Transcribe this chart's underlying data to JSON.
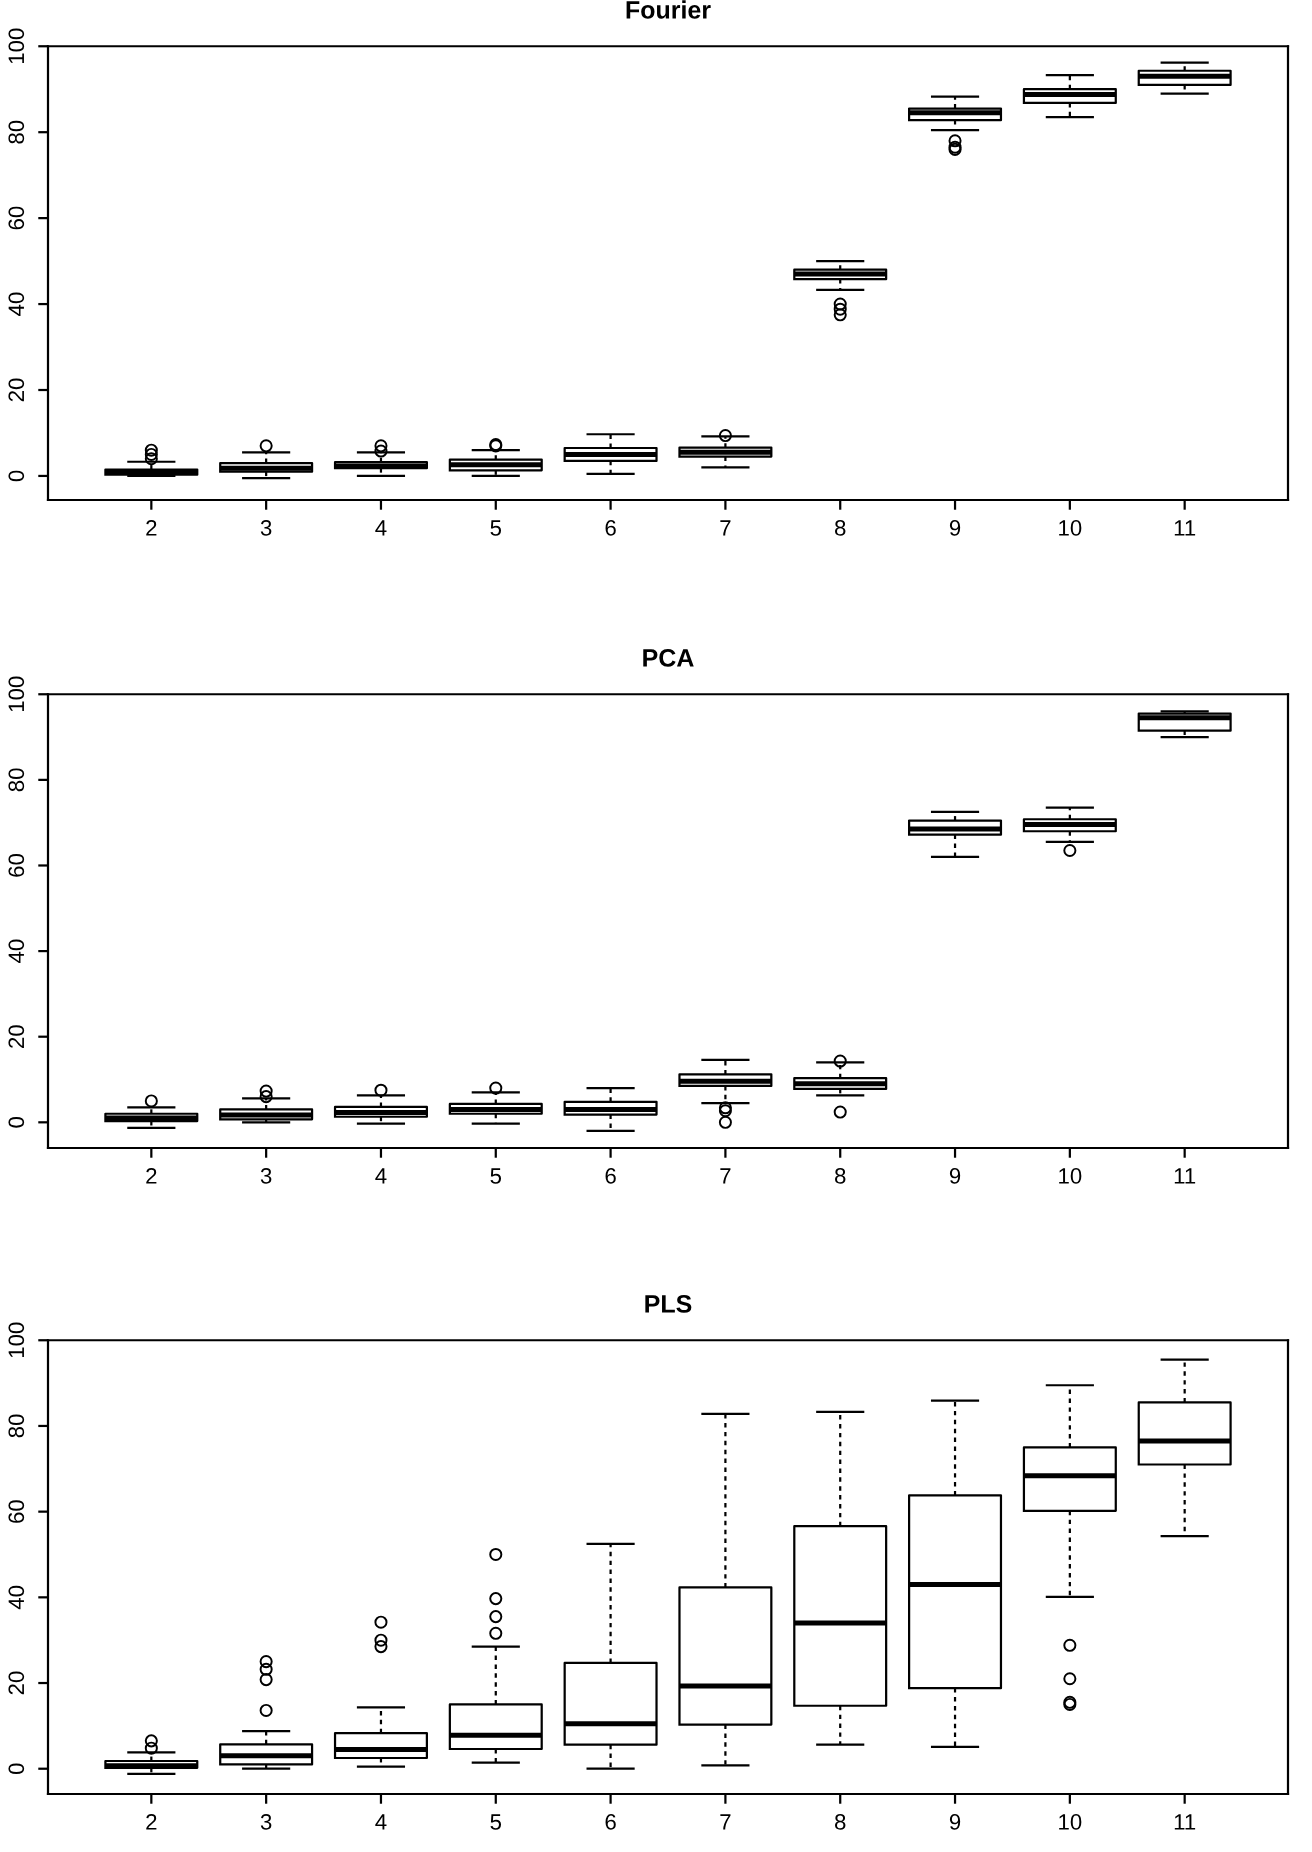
{
  "chart_data": [
    {
      "type": "box",
      "title": "Fourier",
      "categories": [
        "2",
        "3",
        "4",
        "5",
        "6",
        "7",
        "8",
        "9",
        "10",
        "11"
      ],
      "ylim": [
        -5.6,
        100
      ],
      "yticks": [
        0,
        20,
        40,
        60,
        80,
        100
      ],
      "grid": false,
      "boxes": [
        {
          "low": 0,
          "q1": 0.3,
          "median": 0.8,
          "q3": 1.5,
          "high": 3.3,
          "outliers": [
            4,
            5,
            6
          ]
        },
        {
          "low": -0.5,
          "q1": 1,
          "median": 1.8,
          "q3": 3,
          "high": 5.5,
          "outliers": [
            7
          ]
        },
        {
          "low": 0,
          "q1": 1.8,
          "median": 2.3,
          "q3": 3.2,
          "high": 5.5,
          "outliers": [
            5.8,
            7
          ]
        },
        {
          "low": 0,
          "q1": 1.3,
          "median": 2.6,
          "q3": 3.8,
          "high": 6,
          "outliers": [
            7,
            7.3
          ]
        },
        {
          "low": 0.5,
          "q1": 3.5,
          "median": 5,
          "q3": 6.5,
          "high": 9.7
        },
        {
          "low": 2,
          "q1": 4.5,
          "median": 5.5,
          "q3": 6.6,
          "high": 9.2,
          "outliers": [
            9.4
          ]
        },
        {
          "low": 43.3,
          "q1": 45.8,
          "median": 47,
          "q3": 48,
          "high": 50,
          "outliers": [
            37.5,
            38.8,
            40
          ]
        },
        {
          "low": 80.5,
          "q1": 82.8,
          "median": 84.5,
          "q3": 85.5,
          "high": 88.3,
          "outliers": [
            76,
            76.5,
            78
          ]
        },
        {
          "low": 83.5,
          "q1": 86.8,
          "median": 88.8,
          "q3": 90,
          "high": 93.3
        },
        {
          "low": 89,
          "q1": 91,
          "median": 93,
          "q3": 94.3,
          "high": 96.2
        }
      ]
    },
    {
      "type": "box",
      "title": "PCA",
      "categories": [
        "2",
        "3",
        "4",
        "5",
        "6",
        "7",
        "8",
        "9",
        "10",
        "11"
      ],
      "ylim": [
        -6,
        100
      ],
      "yticks": [
        0,
        20,
        40,
        60,
        80,
        100
      ],
      "grid": false,
      "boxes": [
        {
          "low": -1.3,
          "q1": 0.3,
          "median": 1,
          "q3": 2,
          "high": 3.5,
          "outliers": [
            5
          ]
        },
        {
          "low": 0,
          "q1": 0.7,
          "median": 1.7,
          "q3": 3,
          "high": 5.6,
          "outliers": [
            6,
            7.3
          ]
        },
        {
          "low": -0.3,
          "q1": 1.3,
          "median": 2.3,
          "q3": 3.6,
          "high": 6.3,
          "outliers": [
            7.5
          ]
        },
        {
          "low": -0.3,
          "q1": 2,
          "median": 3,
          "q3": 4.3,
          "high": 7,
          "outliers": [
            8
          ]
        },
        {
          "low": -2,
          "q1": 1.8,
          "median": 3,
          "q3": 4.8,
          "high": 8
        },
        {
          "low": 4.5,
          "q1": 8.5,
          "median": 9.6,
          "q3": 11.2,
          "high": 14.6,
          "outliers": [
            0,
            2.7,
            3.4
          ]
        },
        {
          "low": 6.3,
          "q1": 7.8,
          "median": 9,
          "q3": 10.3,
          "high": 14,
          "outliers": [
            2.4,
            14.3
          ]
        },
        {
          "low": 62,
          "q1": 67.2,
          "median": 68.5,
          "q3": 70.5,
          "high": 72.5
        },
        {
          "low": 65.5,
          "q1": 68,
          "median": 69.6,
          "q3": 70.8,
          "high": 73.5,
          "outliers": [
            63.5
          ]
        },
        {
          "low": 90,
          "q1": 91.5,
          "median": 94.5,
          "q3": 95.5,
          "high": 96
        }
      ]
    },
    {
      "type": "box",
      "title": "PLS",
      "categories": [
        "2",
        "3",
        "4",
        "5",
        "6",
        "7",
        "8",
        "9",
        "10",
        "11"
      ],
      "ylim": [
        -5.9,
        100
      ],
      "yticks": [
        0,
        20,
        40,
        60,
        80,
        100
      ],
      "grid": false,
      "boxes": [
        {
          "low": -1.2,
          "q1": 0.2,
          "median": 0.7,
          "q3": 1.8,
          "high": 3.8,
          "outliers": [
            4.8,
            6.5
          ]
        },
        {
          "low": 0,
          "q1": 1,
          "median": 3,
          "q3": 5.7,
          "high": 8.8,
          "outliers": [
            13.6,
            20.8,
            23.2,
            25
          ]
        },
        {
          "low": 0.5,
          "q1": 2.5,
          "median": 4.5,
          "q3": 8.3,
          "high": 14.3,
          "outliers": [
            28.5,
            30,
            34.2
          ]
        },
        {
          "low": 1.4,
          "q1": 4.6,
          "median": 7.8,
          "q3": 15,
          "high": 28.5,
          "outliers": [
            31.6,
            35.5,
            39.7,
            50
          ]
        },
        {
          "low": 0,
          "q1": 5.6,
          "median": 10.5,
          "q3": 24.7,
          "high": 52.5
        },
        {
          "low": 0.8,
          "q1": 10.3,
          "median": 19.3,
          "q3": 42.3,
          "high": 82.8
        },
        {
          "low": 5.6,
          "q1": 14.7,
          "median": 34,
          "q3": 56.6,
          "high": 83.3
        },
        {
          "low": 5.1,
          "q1": 18.8,
          "median": 43,
          "q3": 63.8,
          "high": 85.9
        },
        {
          "low": 40.1,
          "q1": 60.2,
          "median": 68.4,
          "q3": 75,
          "high": 89.5,
          "outliers": [
            15,
            15.5,
            21,
            28.8
          ]
        },
        {
          "low": 54.3,
          "q1": 71,
          "median": 76.5,
          "q3": 85.5,
          "high": 95.5
        }
      ]
    }
  ]
}
